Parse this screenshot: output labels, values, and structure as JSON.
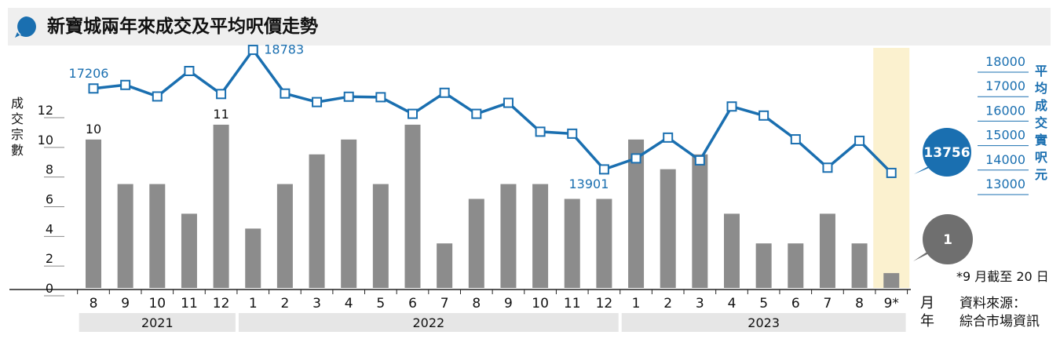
{
  "title": "新寶城兩年來成交及平均呎價走勢",
  "note": "*9 月截至 20 日",
  "source_label": "資料來源：",
  "source_name": "綜合市場資訊",
  "month_unit": "月",
  "year_unit": "年",
  "colors": {
    "bar": "#8c8c8c",
    "line": "#1a6fb0",
    "highlight": "#fbf1cf",
    "callout_blue": "#1a6fb0",
    "callout_gray": "#6f6f6f",
    "year_band": "#e6e6e6",
    "title_bar": "#efefef"
  },
  "chart_data": {
    "type": "bar+line",
    "categories": [
      "8",
      "9",
      "10",
      "11",
      "12",
      "1",
      "2",
      "3",
      "4",
      "5",
      "6",
      "7",
      "8",
      "9",
      "10",
      "11",
      "12",
      "1",
      "2",
      "3",
      "4",
      "5",
      "6",
      "7",
      "8",
      "9*"
    ],
    "years": [
      {
        "label": "2021",
        "from": 0,
        "to": 4
      },
      {
        "label": "2022",
        "from": 5,
        "to": 16
      },
      {
        "label": "2023",
        "from": 17,
        "to": 25
      }
    ],
    "series": [
      {
        "name": "成交宗數",
        "axis": "left",
        "type": "bar",
        "values": [
          10,
          7,
          7,
          5,
          11,
          4,
          7,
          9,
          10,
          7,
          11,
          3,
          6,
          7,
          7,
          6,
          6,
          10,
          8,
          9,
          5,
          3,
          3,
          5,
          3,
          1
        ]
      },
      {
        "name": "平均成交實呎(元)",
        "axis": "right",
        "type": "line",
        "values": [
          17206,
          17350,
          16880,
          17920,
          16980,
          18783,
          17000,
          16650,
          16870,
          16850,
          16170,
          17030,
          16170,
          16620,
          15440,
          15360,
          13901,
          14350,
          15200,
          14270,
          16470,
          16100,
          15130,
          13970,
          15070,
          13756
        ]
      }
    ],
    "left_axis": {
      "label": "成交宗數",
      "range": [
        0,
        12
      ],
      "ticks": [
        0,
        2,
        4,
        6,
        8,
        10,
        12
      ]
    },
    "right_axis": {
      "label": "平均成交實呎(元)",
      "range": [
        13000,
        18000
      ],
      "ticks": [
        13000,
        14000,
        15000,
        16000,
        17000,
        18000
      ]
    },
    "data_labels": [
      {
        "series": "成交宗數",
        "index": 0,
        "text": "10"
      },
      {
        "series": "成交宗數",
        "index": 4,
        "text": "11"
      },
      {
        "series": "平均成交實呎(元)",
        "index": 0,
        "text": "17206"
      },
      {
        "series": "平均成交實呎(元)",
        "index": 5,
        "text": "18783"
      },
      {
        "series": "平均成交實呎(元)",
        "index": 16,
        "text": "13901"
      }
    ],
    "highlight_index": 25,
    "callouts": {
      "line_last": "13756",
      "bar_last": "1"
    }
  }
}
